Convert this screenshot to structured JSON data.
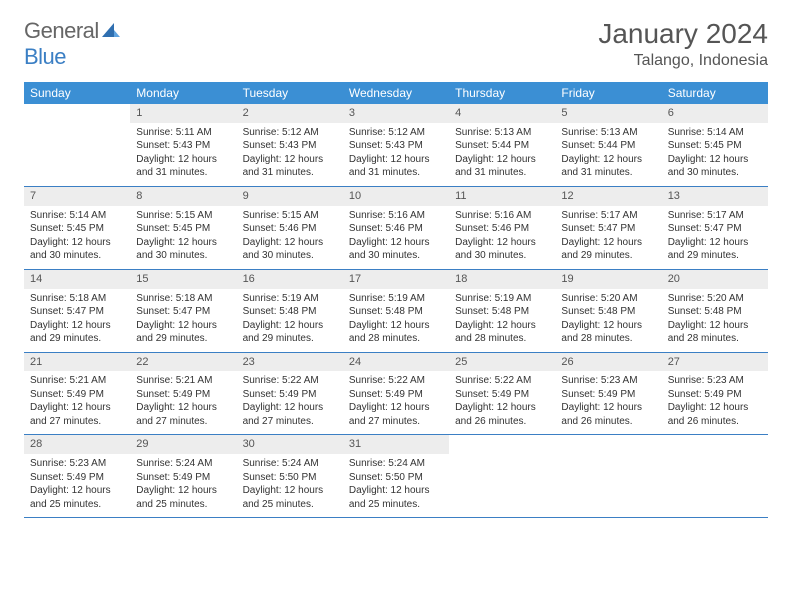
{
  "brand": {
    "part1": "General",
    "part2": "Blue"
  },
  "title": {
    "month": "January 2024",
    "location": "Talango, Indonesia"
  },
  "colors": {
    "header_bg": "#3b8fd4",
    "accent": "#3b7fc4",
    "daynum_bg": "#ededed",
    "text": "#333333"
  },
  "day_names": [
    "Sunday",
    "Monday",
    "Tuesday",
    "Wednesday",
    "Thursday",
    "Friday",
    "Saturday"
  ],
  "start_offset": 1,
  "days": [
    {
      "n": "1",
      "sr": "Sunrise: 5:11 AM",
      "ss": "Sunset: 5:43 PM",
      "dl": "Daylight: 12 hours and 31 minutes."
    },
    {
      "n": "2",
      "sr": "Sunrise: 5:12 AM",
      "ss": "Sunset: 5:43 PM",
      "dl": "Daylight: 12 hours and 31 minutes."
    },
    {
      "n": "3",
      "sr": "Sunrise: 5:12 AM",
      "ss": "Sunset: 5:43 PM",
      "dl": "Daylight: 12 hours and 31 minutes."
    },
    {
      "n": "4",
      "sr": "Sunrise: 5:13 AM",
      "ss": "Sunset: 5:44 PM",
      "dl": "Daylight: 12 hours and 31 minutes."
    },
    {
      "n": "5",
      "sr": "Sunrise: 5:13 AM",
      "ss": "Sunset: 5:44 PM",
      "dl": "Daylight: 12 hours and 31 minutes."
    },
    {
      "n": "6",
      "sr": "Sunrise: 5:14 AM",
      "ss": "Sunset: 5:45 PM",
      "dl": "Daylight: 12 hours and 30 minutes."
    },
    {
      "n": "7",
      "sr": "Sunrise: 5:14 AM",
      "ss": "Sunset: 5:45 PM",
      "dl": "Daylight: 12 hours and 30 minutes."
    },
    {
      "n": "8",
      "sr": "Sunrise: 5:15 AM",
      "ss": "Sunset: 5:45 PM",
      "dl": "Daylight: 12 hours and 30 minutes."
    },
    {
      "n": "9",
      "sr": "Sunrise: 5:15 AM",
      "ss": "Sunset: 5:46 PM",
      "dl": "Daylight: 12 hours and 30 minutes."
    },
    {
      "n": "10",
      "sr": "Sunrise: 5:16 AM",
      "ss": "Sunset: 5:46 PM",
      "dl": "Daylight: 12 hours and 30 minutes."
    },
    {
      "n": "11",
      "sr": "Sunrise: 5:16 AM",
      "ss": "Sunset: 5:46 PM",
      "dl": "Daylight: 12 hours and 30 minutes."
    },
    {
      "n": "12",
      "sr": "Sunrise: 5:17 AM",
      "ss": "Sunset: 5:47 PM",
      "dl": "Daylight: 12 hours and 29 minutes."
    },
    {
      "n": "13",
      "sr": "Sunrise: 5:17 AM",
      "ss": "Sunset: 5:47 PM",
      "dl": "Daylight: 12 hours and 29 minutes."
    },
    {
      "n": "14",
      "sr": "Sunrise: 5:18 AM",
      "ss": "Sunset: 5:47 PM",
      "dl": "Daylight: 12 hours and 29 minutes."
    },
    {
      "n": "15",
      "sr": "Sunrise: 5:18 AM",
      "ss": "Sunset: 5:47 PM",
      "dl": "Daylight: 12 hours and 29 minutes."
    },
    {
      "n": "16",
      "sr": "Sunrise: 5:19 AM",
      "ss": "Sunset: 5:48 PM",
      "dl": "Daylight: 12 hours and 29 minutes."
    },
    {
      "n": "17",
      "sr": "Sunrise: 5:19 AM",
      "ss": "Sunset: 5:48 PM",
      "dl": "Daylight: 12 hours and 28 minutes."
    },
    {
      "n": "18",
      "sr": "Sunrise: 5:19 AM",
      "ss": "Sunset: 5:48 PM",
      "dl": "Daylight: 12 hours and 28 minutes."
    },
    {
      "n": "19",
      "sr": "Sunrise: 5:20 AM",
      "ss": "Sunset: 5:48 PM",
      "dl": "Daylight: 12 hours and 28 minutes."
    },
    {
      "n": "20",
      "sr": "Sunrise: 5:20 AM",
      "ss": "Sunset: 5:48 PM",
      "dl": "Daylight: 12 hours and 28 minutes."
    },
    {
      "n": "21",
      "sr": "Sunrise: 5:21 AM",
      "ss": "Sunset: 5:49 PM",
      "dl": "Daylight: 12 hours and 27 minutes."
    },
    {
      "n": "22",
      "sr": "Sunrise: 5:21 AM",
      "ss": "Sunset: 5:49 PM",
      "dl": "Daylight: 12 hours and 27 minutes."
    },
    {
      "n": "23",
      "sr": "Sunrise: 5:22 AM",
      "ss": "Sunset: 5:49 PM",
      "dl": "Daylight: 12 hours and 27 minutes."
    },
    {
      "n": "24",
      "sr": "Sunrise: 5:22 AM",
      "ss": "Sunset: 5:49 PM",
      "dl": "Daylight: 12 hours and 27 minutes."
    },
    {
      "n": "25",
      "sr": "Sunrise: 5:22 AM",
      "ss": "Sunset: 5:49 PM",
      "dl": "Daylight: 12 hours and 26 minutes."
    },
    {
      "n": "26",
      "sr": "Sunrise: 5:23 AM",
      "ss": "Sunset: 5:49 PM",
      "dl": "Daylight: 12 hours and 26 minutes."
    },
    {
      "n": "27",
      "sr": "Sunrise: 5:23 AM",
      "ss": "Sunset: 5:49 PM",
      "dl": "Daylight: 12 hours and 26 minutes."
    },
    {
      "n": "28",
      "sr": "Sunrise: 5:23 AM",
      "ss": "Sunset: 5:49 PM",
      "dl": "Daylight: 12 hours and 25 minutes."
    },
    {
      "n": "29",
      "sr": "Sunrise: 5:24 AM",
      "ss": "Sunset: 5:49 PM",
      "dl": "Daylight: 12 hours and 25 minutes."
    },
    {
      "n": "30",
      "sr": "Sunrise: 5:24 AM",
      "ss": "Sunset: 5:50 PM",
      "dl": "Daylight: 12 hours and 25 minutes."
    },
    {
      "n": "31",
      "sr": "Sunrise: 5:24 AM",
      "ss": "Sunset: 5:50 PM",
      "dl": "Daylight: 12 hours and 25 minutes."
    }
  ]
}
